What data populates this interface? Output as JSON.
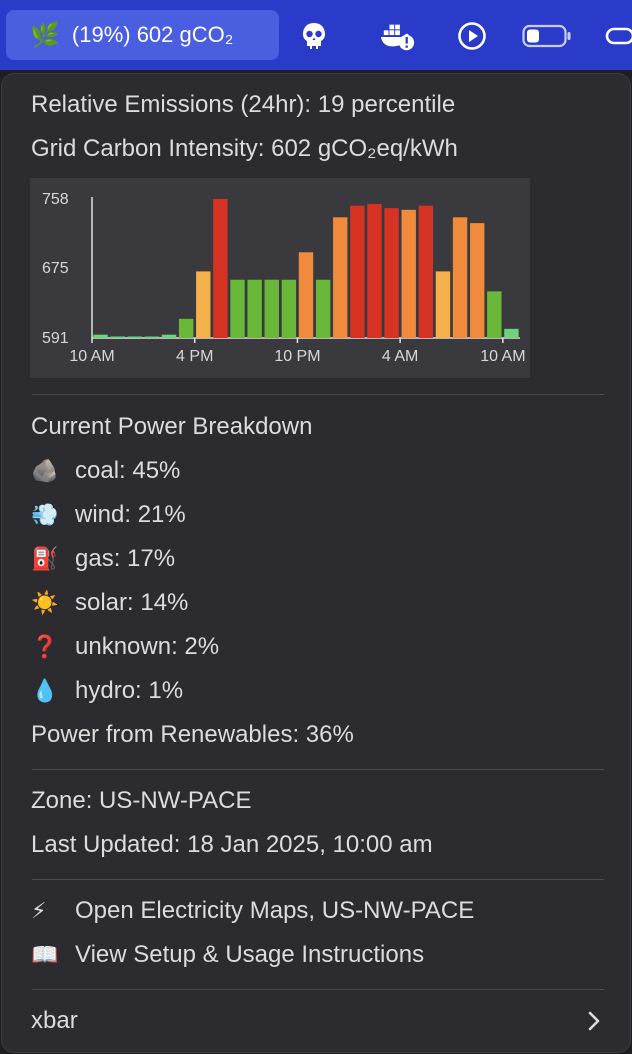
{
  "menubar": {
    "active_item": {
      "icon": "leaf-icon",
      "label": "(19%) 602 gCO₂"
    },
    "icons": [
      "skull-icon",
      "docker-alert-icon",
      "play-circle-icon",
      "battery-icon",
      "link-icon"
    ]
  },
  "menu": {
    "relative_emissions": "Relative Emissions (24hr): 19 percentile",
    "grid_intensity": "Grid Carbon Intensity: 602 gCO₂eq/kWh",
    "breakdown_title": "Current Power Breakdown",
    "breakdown": [
      {
        "icon": "rock-icon",
        "emoji": "🪨",
        "label": "coal: 45%"
      },
      {
        "icon": "wind-icon",
        "emoji": "💨",
        "label": "wind: 21%"
      },
      {
        "icon": "fuel-pump-icon",
        "emoji": "⛽",
        "label": "gas: 17%"
      },
      {
        "icon": "sun-icon",
        "emoji": "☀️",
        "label": "solar: 14%"
      },
      {
        "icon": "question-mark-icon",
        "emoji": "❓",
        "label": "unknown: 2%"
      },
      {
        "icon": "droplet-icon",
        "emoji": "💧",
        "label": "hydro: 1%"
      }
    ],
    "renewables": "Power from Renewables: 36%",
    "zone": "Zone: US-NW-PACE",
    "last_updated": "Last Updated: 18 Jan 2025, 10:00 am",
    "actions": [
      {
        "icon": "lightning-icon",
        "emoji": "⚡",
        "label": "Open Electricity Maps, US-NW-PACE"
      },
      {
        "icon": "book-icon",
        "emoji": "📖",
        "label": "View Setup & Usage Instructions"
      }
    ],
    "footer_label": "xbar"
  },
  "chart_data": {
    "type": "bar",
    "title": "",
    "xlabel": "",
    "ylabel": "",
    "ytick_labels": [
      "758",
      "675",
      "591"
    ],
    "yticks": [
      758,
      675,
      591
    ],
    "ylim": [
      591,
      758
    ],
    "xtick_labels": [
      "10 AM",
      "4 PM",
      "10 PM",
      "4 AM",
      "10 AM"
    ],
    "xtick_positions": [
      0,
      6,
      12,
      18,
      24
    ],
    "values": [
      595,
      592,
      592,
      592,
      595,
      614,
      671,
      758,
      661,
      661,
      661,
      661,
      694,
      661,
      736,
      750,
      752,
      747,
      745,
      750,
      671,
      736,
      729,
      647,
      602
    ],
    "colors": [
      "#6fd27f",
      "#6fd27f",
      "#6fd27f",
      "#6fd27f",
      "#6fd27f",
      "#6ab83a",
      "#f4b04a",
      "#d63324",
      "#6ab83a",
      "#6ab83a",
      "#6ab83a",
      "#6ab83a",
      "#f08a3c",
      "#6ab83a",
      "#f08a3c",
      "#d63324",
      "#d63324",
      "#d63324",
      "#f08a3c",
      "#d63324",
      "#f4b04a",
      "#f08a3c",
      "#f08a3c",
      "#6ab83a",
      "#6fd27f"
    ],
    "grid": false,
    "legend": "none"
  }
}
